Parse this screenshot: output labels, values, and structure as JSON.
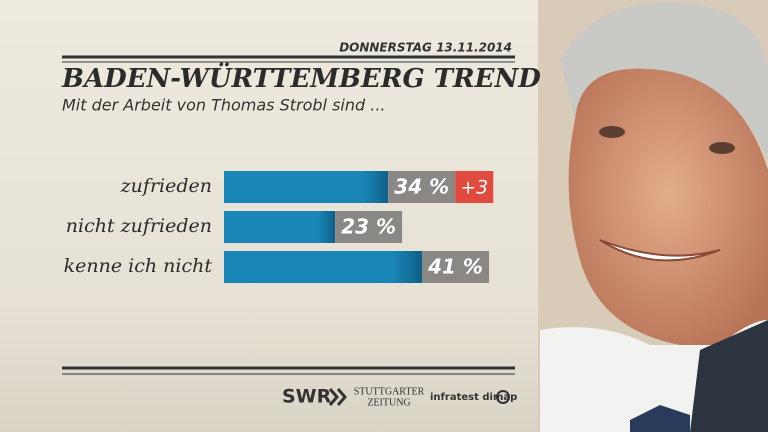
{
  "chart_data": {
    "type": "bar",
    "orientation": "horizontal",
    "date": "DONNERSTAG 13.11.2014",
    "title": "BADEN-WÜRTTEMBERG TREND",
    "subtitle": "Mit der Arbeit von Thomas Strobl sind ...",
    "categories": [
      "zufrieden",
      "nicht zufrieden",
      "kenne ich nicht"
    ],
    "values": [
      34,
      23,
      41
    ],
    "value_labels": [
      "34 %",
      "23 %",
      "41 %"
    ],
    "changes": [
      3,
      null,
      null
    ],
    "change_labels": [
      "+3",
      null,
      null
    ],
    "color": "#1a86b8",
    "label_color": "#8a8885",
    "change_color": "#e04a3f",
    "xlim": [
      0,
      100
    ],
    "sources": [
      "SWR",
      "STUTTGARTER",
      "ZEITUNG",
      "infratest dimap"
    ]
  }
}
